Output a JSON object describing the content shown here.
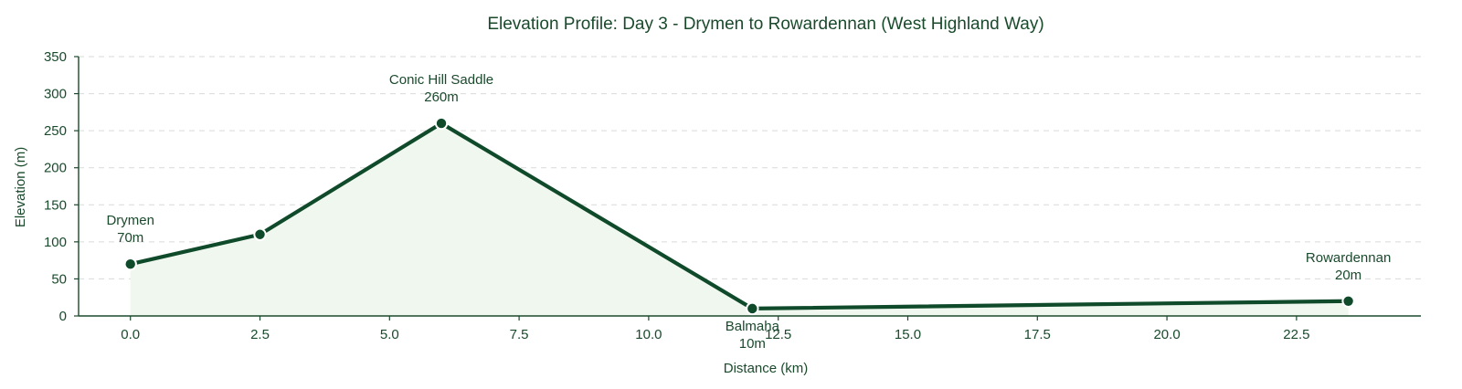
{
  "chart_data": {
    "type": "area",
    "title": "Elevation Profile: Day 3 - Drymen to Rowardennan (West Highland Way)",
    "xlabel": "Distance (km)",
    "ylabel": "Elevation (m)",
    "xlim": [
      -1.0,
      24.9
    ],
    "ylim": [
      0,
      350
    ],
    "xticks": [
      0.0,
      2.5,
      5.0,
      7.5,
      10.0,
      12.5,
      15.0,
      17.5,
      20.0,
      22.5
    ],
    "xtick_labels": [
      "0.0",
      "2.5",
      "5.0",
      "7.5",
      "10.0",
      "12.5",
      "15.0",
      "17.5",
      "20.0",
      "22.5"
    ],
    "yticks": [
      0,
      50,
      100,
      150,
      200,
      250,
      300,
      350
    ],
    "ytick_labels": [
      "0",
      "50",
      "100",
      "150",
      "200",
      "250",
      "300",
      "350"
    ],
    "grid": "horizontal dashed",
    "series": [
      {
        "x": [
          0.0,
          2.5,
          6.0,
          12.0,
          23.5
        ],
        "y": [
          70,
          110,
          260,
          10,
          20
        ]
      }
    ],
    "annotations": [
      {
        "x": 0.0,
        "y": 70,
        "name": "Drymen",
        "value": "70m",
        "placement": "above"
      },
      {
        "x": 6.0,
        "y": 260,
        "name": "Conic Hill Saddle",
        "value": "260m",
        "placement": "above"
      },
      {
        "x": 12.0,
        "y": 10,
        "name": "Balmaha",
        "value": "10m",
        "placement": "below"
      },
      {
        "x": 23.5,
        "y": 20,
        "name": "Rowardennan",
        "value": "20m",
        "placement": "above"
      }
    ],
    "colors": {
      "line": "#0f4a2a",
      "fill": "#f0f7ef",
      "marker_edge": "#ffffff",
      "text": "#1a4a2c"
    }
  }
}
